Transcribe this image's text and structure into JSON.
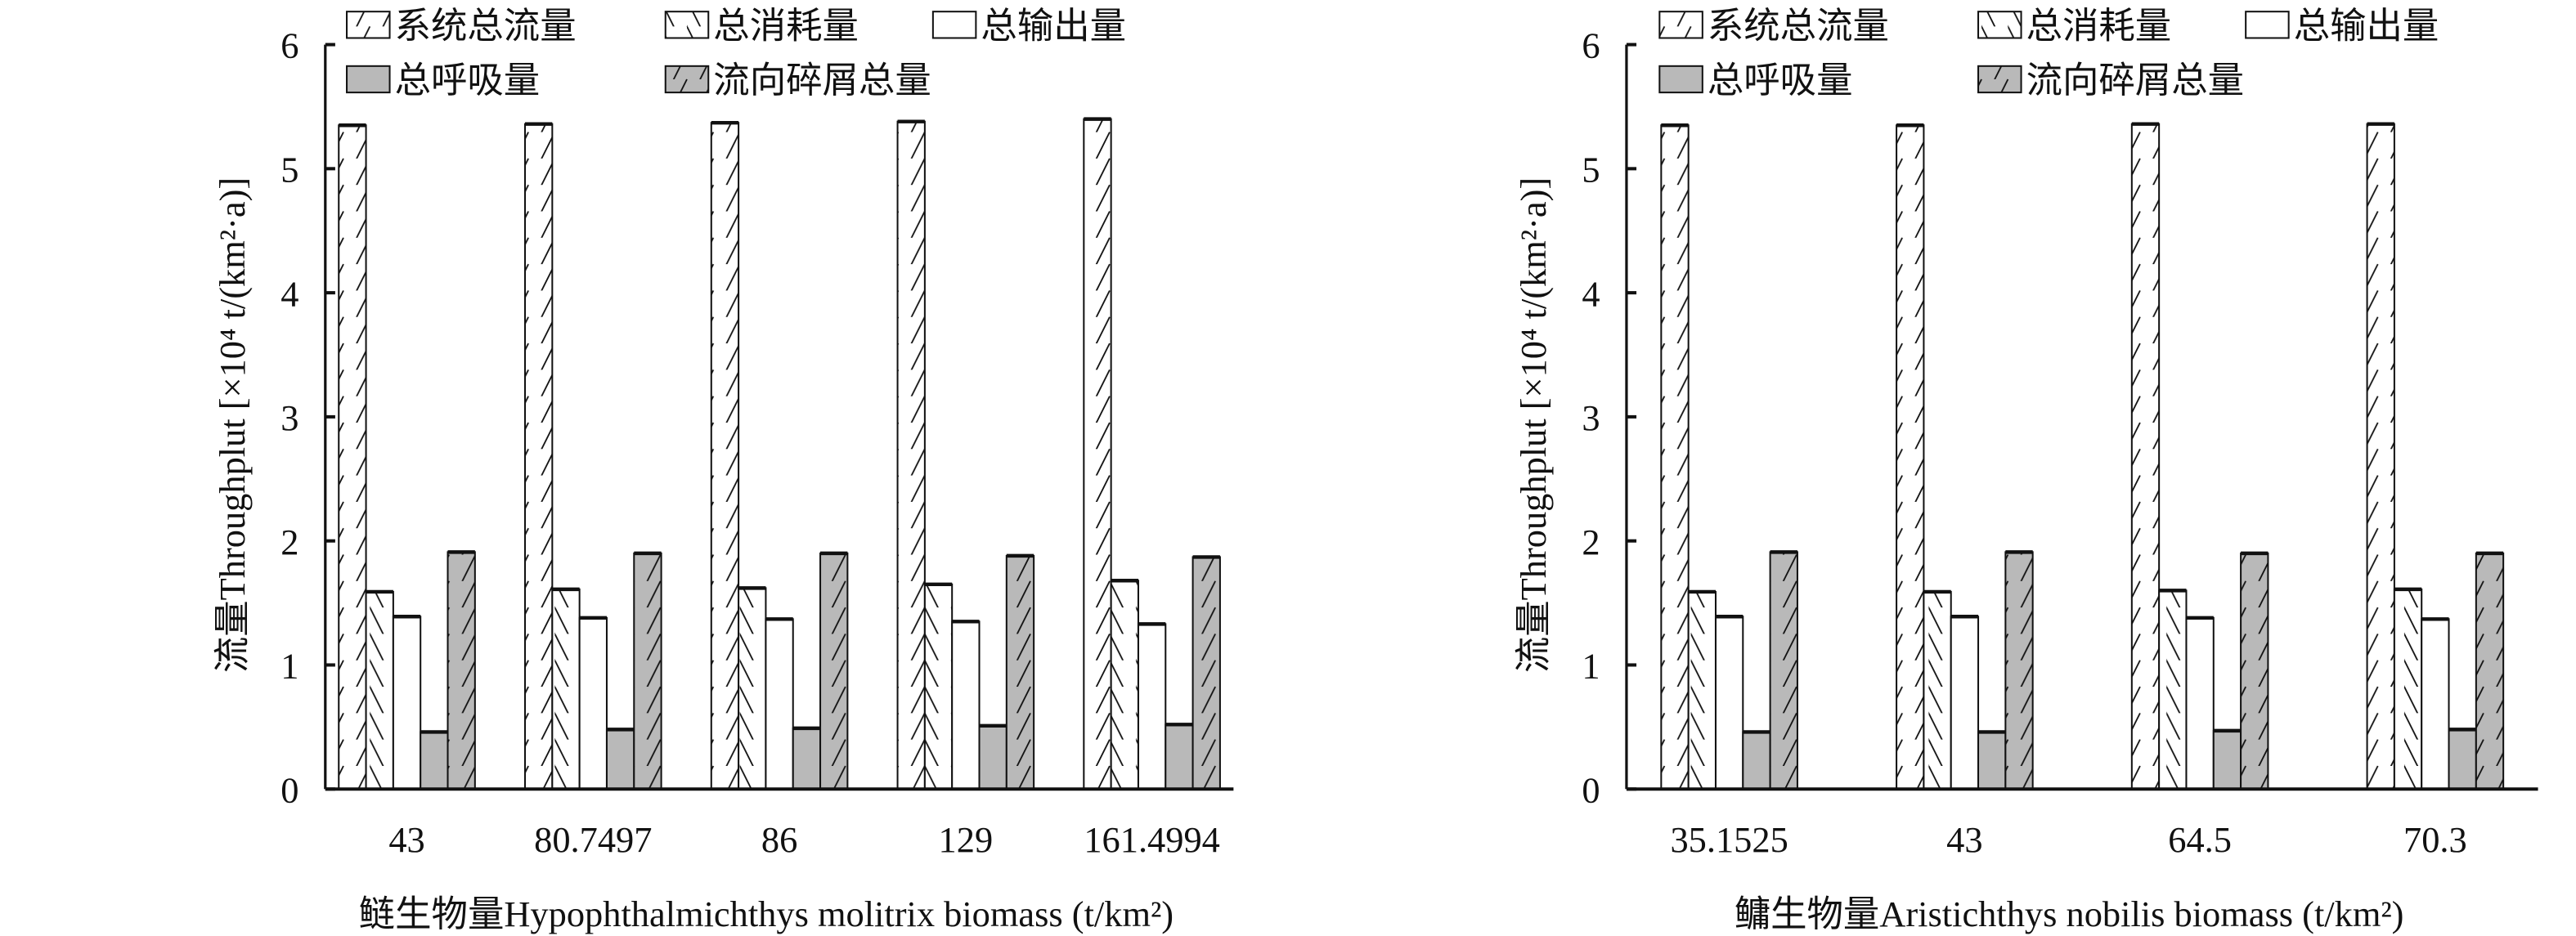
{
  "legend": [
    "系统总流量",
    "总消耗量",
    "总输出量",
    "总呼吸量",
    "流向碎屑总量"
  ],
  "colors": {
    "axis": "#111111",
    "gray": "#b9b9b9",
    "white": "#ffffff"
  },
  "chart_data": [
    {
      "type": "bar",
      "title": "",
      "xlabel": "鲢生物量Hypophthalmichthys molitrix biomass (t/km²)",
      "ylabel": "流量Throughplut [×10⁴ t/(km²·a)]",
      "ylim": [
        0,
        6
      ],
      "yticks": [
        "0",
        "1",
        "2",
        "3",
        "4",
        "5",
        "6"
      ],
      "categories": [
        "43",
        "80.7497",
        "86",
        "129",
        "161.4994"
      ],
      "series": [
        {
          "name": "系统总流量",
          "values": [
            5.35,
            5.36,
            5.37,
            5.38,
            5.4
          ]
        },
        {
          "name": "总消耗量",
          "values": [
            1.59,
            1.61,
            1.62,
            1.65,
            1.68
          ]
        },
        {
          "name": "总输出量",
          "values": [
            1.39,
            1.38,
            1.37,
            1.35,
            1.33
          ]
        },
        {
          "name": "总呼吸量",
          "values": [
            0.46,
            0.48,
            0.49,
            0.51,
            0.52
          ]
        },
        {
          "name": "流向碎屑总量",
          "values": [
            1.91,
            1.9,
            1.9,
            1.88,
            1.87
          ]
        }
      ],
      "legend_position": "top"
    },
    {
      "type": "bar",
      "title": "",
      "xlabel": "鳙生物量Aristichthys nobilis biomass (t/km²)",
      "ylabel": "流量Throughplut [×10⁴ t/(km²·a)]",
      "ylim": [
        0,
        6
      ],
      "yticks": [
        "0",
        "1",
        "2",
        "3",
        "4",
        "5",
        "6"
      ],
      "categories": [
        "35.1525",
        "43",
        "64.5",
        "70.3"
      ],
      "series": [
        {
          "name": "系统总流量",
          "values": [
            5.35,
            5.35,
            5.36,
            5.36
          ]
        },
        {
          "name": "总消耗量",
          "values": [
            1.59,
            1.59,
            1.6,
            1.61
          ]
        },
        {
          "name": "总输出量",
          "values": [
            1.39,
            1.39,
            1.38,
            1.37
          ]
        },
        {
          "name": "总呼吸量",
          "values": [
            0.46,
            0.46,
            0.47,
            0.48
          ]
        },
        {
          "name": "流向碎屑总量",
          "values": [
            1.91,
            1.91,
            1.9,
            1.9
          ]
        }
      ],
      "legend_position": "top"
    }
  ]
}
